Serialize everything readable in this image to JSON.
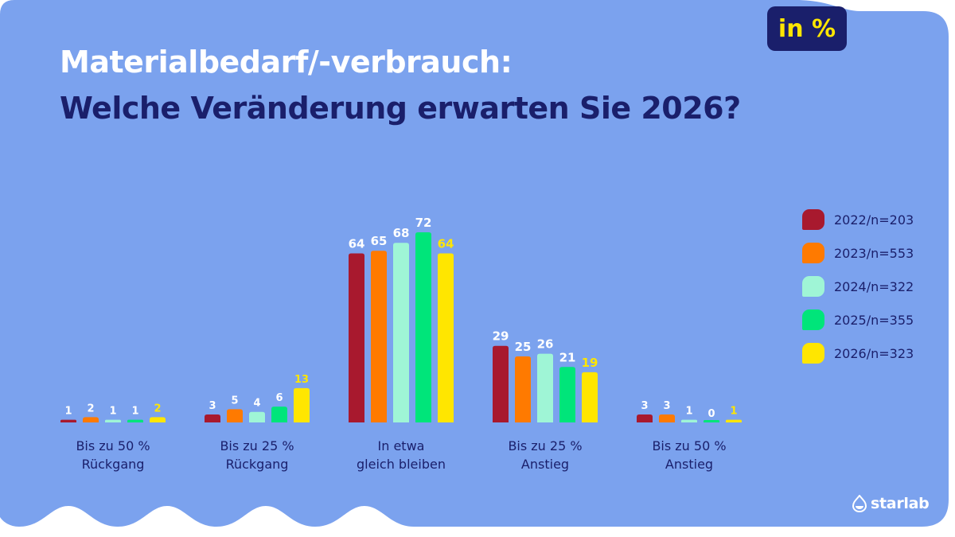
{
  "header": {
    "title_line1": "Materialbedarf/-verbrauch:",
    "title_line2": "Welche Veränderung erwarten Sie 2026?",
    "unit_badge": "in %"
  },
  "colors": {
    "background": "#7ba2ee",
    "title_dark": "#1a1f6b",
    "badge_text": "#ffe600"
  },
  "chart_data": {
    "type": "bar",
    "title": "Materialbedarf/-verbrauch: Welche Veränderung erwarten Sie 2026?",
    "unit": "in %",
    "xlabel": "",
    "ylabel": "",
    "ylim": [
      0,
      80
    ],
    "grid": false,
    "legend_position": "right",
    "categories": [
      [
        "Bis zu 50 %",
        "Rückgang"
      ],
      [
        "Bis zu 25 %",
        "Rückgang"
      ],
      [
        "In etwa",
        "gleich bleiben"
      ],
      [
        "Bis zu 25 %",
        "Anstieg"
      ],
      [
        "Bis zu 50 %",
        "Anstieg"
      ]
    ],
    "series": [
      {
        "name": "2022/n=203",
        "color": "#a8192e",
        "label_color": "#ffffff",
        "values": [
          1,
          3,
          64,
          29,
          3
        ]
      },
      {
        "name": "2023/n=553",
        "color": "#ff7a00",
        "label_color": "#ffffff",
        "values": [
          2,
          5,
          65,
          25,
          3
        ]
      },
      {
        "name": "2024/n=322",
        "color": "#9ff5d6",
        "label_color": "#ffffff",
        "values": [
          1,
          4,
          68,
          26,
          1
        ]
      },
      {
        "name": "2025/n=355",
        "color": "#00e57a",
        "label_color": "#ffffff",
        "values": [
          1,
          6,
          72,
          21,
          0
        ]
      },
      {
        "name": "2026/n=323",
        "color": "#ffe600",
        "label_color": "#ffe600",
        "values": [
          2,
          13,
          64,
          19,
          1
        ]
      }
    ]
  },
  "branding": {
    "logo_text": "starlab",
    "logo_icon": "starlab-logo-icon"
  }
}
